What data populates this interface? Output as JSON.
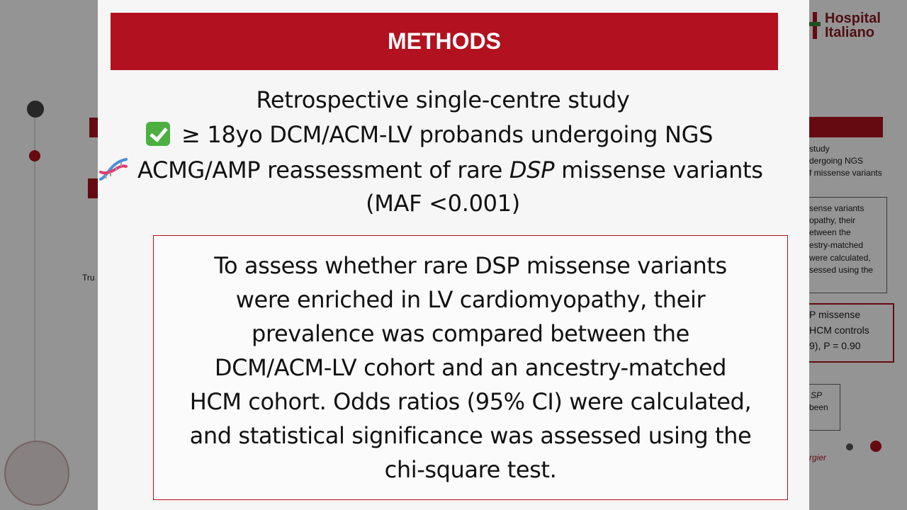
{
  "background_slide": {
    "logo_text": [
      "Hospital",
      "Italiano"
    ],
    "right_fragments": [
      "study",
      "dergoing NGS",
      "f missense variants"
    ],
    "right_box_fragments": [
      "sense variants",
      "opathy, their",
      "etween the",
      "estry-matched",
      "were calculated,",
      "sessed using the"
    ],
    "right_red_fragments": [
      "P missense",
      "HCM controls",
      "9), P = 0.90"
    ],
    "right_small_fragments": [
      "SP",
      "been"
    ],
    "right_link": "rgier",
    "left_fragment": "Tru",
    "colors": {
      "accent": "#b0121f"
    }
  },
  "methods": {
    "title": "METHODS",
    "line1": "Retrospective single-centre study",
    "line2": "≥ 18yo DCM/ACM-LV probands undergoing NGS",
    "line2_icon": "check-mark-icon",
    "line3_prefix": "ACMG/AMP reassessment of rare ",
    "line3_gene": "DSP",
    "line3_suffix": " missense variants",
    "line3_icon": "dna-icon",
    "line4": "(MAF <0.001)"
  },
  "aim": {
    "lines": [
      "To assess whether rare DSP missense variants",
      "were enriched in LV cardiomyopathy, their",
      "prevalence was compared between the",
      "DCM/ACM-LV cohort and an ancestry-matched",
      "HCM cohort. Odds ratios (95% CI) were calculated,",
      "and statistical significance was assessed using the",
      "chi-square test."
    ]
  },
  "colors": {
    "banner": "#b2111f",
    "check": "#4caf3f"
  }
}
